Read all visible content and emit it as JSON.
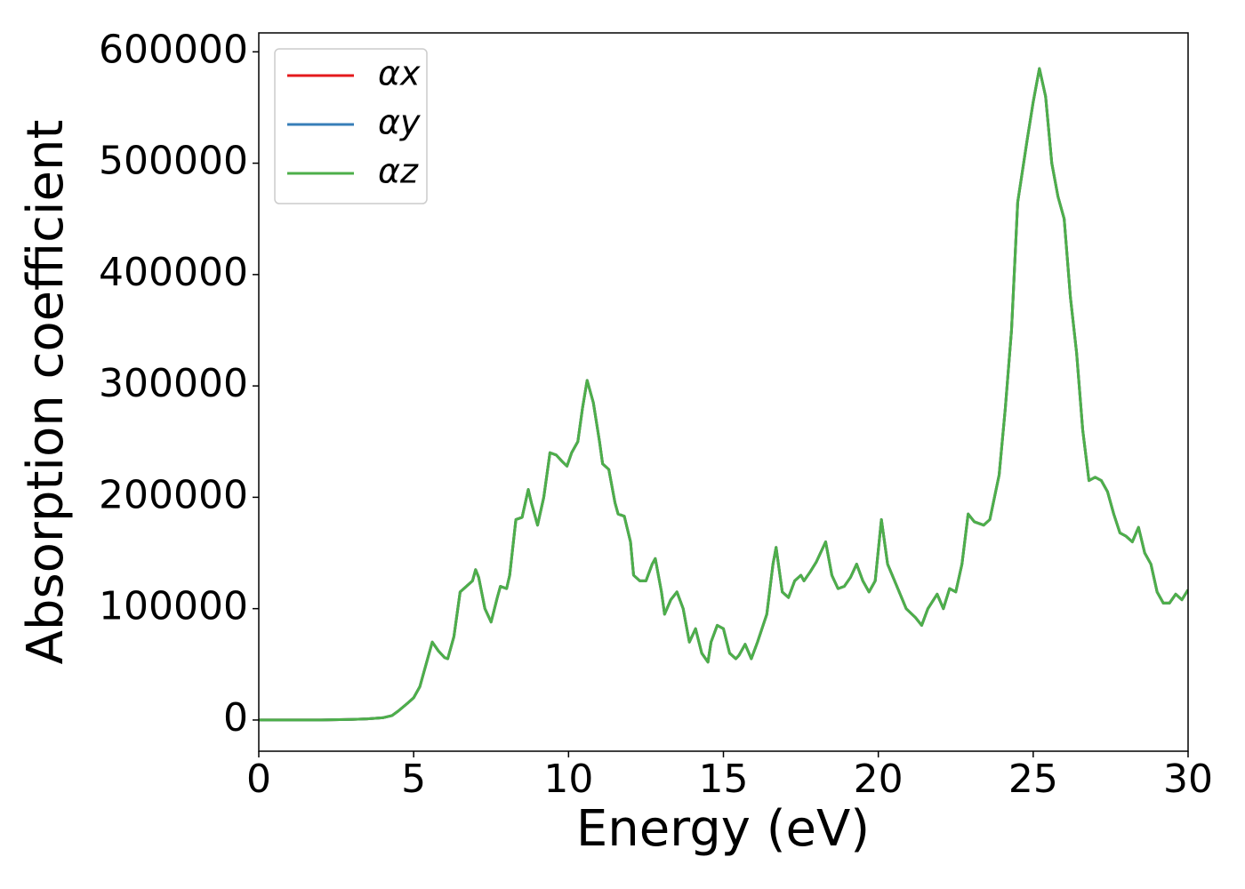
{
  "chart_data": {
    "type": "line",
    "xlabel": "Energy (eV)",
    "ylabel": "Absorption coefficient",
    "x": [
      0,
      1,
      2,
      3,
      3.5,
      4,
      4.3,
      4.5,
      4.8,
      5,
      5.2,
      5.4,
      5.6,
      5.8,
      6,
      6.1,
      6.3,
      6.5,
      6.7,
      6.9,
      7,
      7.1,
      7.3,
      7.5,
      7.7,
      7.8,
      8,
      8.1,
      8.3,
      8.5,
      8.7,
      8.8,
      9,
      9.2,
      9.4,
      9.6,
      9.8,
      9.95,
      10.1,
      10.3,
      10.45,
      10.6,
      10.8,
      11,
      11.1,
      11.3,
      11.5,
      11.6,
      11.8,
      12,
      12.1,
      12.3,
      12.5,
      12.7,
      12.8,
      13,
      13.1,
      13.3,
      13.5,
      13.7,
      13.9,
      14.1,
      14.3,
      14.5,
      14.6,
      14.8,
      15,
      15.2,
      15.4,
      15.5,
      15.7,
      15.9,
      16.1,
      16.4,
      16.6,
      16.7,
      16.9,
      17.1,
      17.3,
      17.5,
      17.6,
      17.8,
      18,
      18.3,
      18.5,
      18.7,
      18.9,
      19.1,
      19.3,
      19.5,
      19.7,
      19.9,
      20.1,
      20.3,
      20.6,
      20.9,
      21.2,
      21.4,
      21.6,
      21.9,
      22.1,
      22.3,
      22.5,
      22.7,
      22.9,
      23.1,
      23.4,
      23.6,
      23.9,
      24.1,
      24.3,
      24.5,
      24.8,
      25,
      25.2,
      25.4,
      25.6,
      25.8,
      26,
      26.2,
      26.4,
      26.6,
      26.8,
      27,
      27.2,
      27.4,
      27.6,
      27.8,
      28,
      28.2,
      28.4,
      28.6,
      28.8,
      29,
      29.2,
      29.4,
      29.6,
      29.8,
      30
    ],
    "series": [
      {
        "name": "αx",
        "color": "#e41a1c",
        "values": [
          0,
          0,
          0,
          500,
          1000,
          2000,
          4000,
          8000,
          15000,
          20000,
          30000,
          50000,
          70000,
          62000,
          56000,
          55000,
          75000,
          115000,
          120000,
          125000,
          135000,
          128000,
          100000,
          88000,
          110000,
          120000,
          118000,
          130000,
          180000,
          182000,
          207000,
          195000,
          175000,
          200000,
          240000,
          238000,
          232000,
          228000,
          240000,
          250000,
          280000,
          305000,
          285000,
          250000,
          230000,
          225000,
          195000,
          185000,
          183000,
          160000,
          130000,
          125000,
          125000,
          140000,
          145000,
          115000,
          95000,
          108000,
          115000,
          100000,
          70000,
          82000,
          60000,
          52000,
          70000,
          85000,
          82000,
          60000,
          55000,
          58000,
          68000,
          55000,
          70000,
          95000,
          140000,
          155000,
          115000,
          110000,
          125000,
          130000,
          125000,
          133000,
          142000,
          160000,
          130000,
          118000,
          120000,
          128000,
          140000,
          125000,
          115000,
          125000,
          180000,
          140000,
          120000,
          100000,
          92000,
          85000,
          100000,
          113000,
          100000,
          118000,
          115000,
          140000,
          185000,
          178000,
          175000,
          180000,
          220000,
          280000,
          350000,
          465000,
          520000,
          555000,
          585000,
          560000,
          500000,
          470000,
          450000,
          380000,
          330000,
          260000,
          215000,
          218000,
          215000,
          205000,
          185000,
          168000,
          165000,
          160000,
          173000,
          150000,
          140000,
          115000,
          105000,
          105000,
          113000,
          108000,
          117000
        ]
      },
      {
        "name": "αy",
        "color": "#377eb8",
        "values": [
          0,
          0,
          0,
          500,
          1000,
          2000,
          4000,
          8000,
          15000,
          20000,
          30000,
          50000,
          70000,
          62000,
          56000,
          55000,
          75000,
          115000,
          120000,
          125000,
          135000,
          128000,
          100000,
          88000,
          110000,
          120000,
          118000,
          130000,
          180000,
          182000,
          207000,
          195000,
          175000,
          200000,
          240000,
          238000,
          232000,
          228000,
          240000,
          250000,
          280000,
          305000,
          285000,
          250000,
          230000,
          225000,
          195000,
          185000,
          183000,
          160000,
          130000,
          125000,
          125000,
          140000,
          145000,
          115000,
          95000,
          108000,
          115000,
          100000,
          70000,
          82000,
          60000,
          52000,
          70000,
          85000,
          82000,
          60000,
          55000,
          58000,
          68000,
          55000,
          70000,
          95000,
          140000,
          155000,
          115000,
          110000,
          125000,
          130000,
          125000,
          133000,
          142000,
          160000,
          130000,
          118000,
          120000,
          128000,
          140000,
          125000,
          115000,
          125000,
          180000,
          140000,
          120000,
          100000,
          92000,
          85000,
          100000,
          113000,
          100000,
          118000,
          115000,
          140000,
          185000,
          178000,
          175000,
          180000,
          220000,
          280000,
          350000,
          465000,
          520000,
          555000,
          585000,
          560000,
          500000,
          470000,
          450000,
          380000,
          330000,
          260000,
          215000,
          218000,
          215000,
          205000,
          185000,
          168000,
          165000,
          160000,
          173000,
          150000,
          140000,
          115000,
          105000,
          105000,
          113000,
          108000,
          117000
        ]
      },
      {
        "name": "αz",
        "color": "#4daf4a",
        "values": [
          0,
          0,
          0,
          500,
          1000,
          2000,
          4000,
          8000,
          15000,
          20000,
          30000,
          50000,
          70000,
          62000,
          56000,
          55000,
          75000,
          115000,
          120000,
          125000,
          135000,
          128000,
          100000,
          88000,
          110000,
          120000,
          118000,
          130000,
          180000,
          182000,
          207000,
          195000,
          175000,
          200000,
          240000,
          238000,
          232000,
          228000,
          240000,
          250000,
          280000,
          305000,
          285000,
          250000,
          230000,
          225000,
          195000,
          185000,
          183000,
          160000,
          130000,
          125000,
          125000,
          140000,
          145000,
          115000,
          95000,
          108000,
          115000,
          100000,
          70000,
          82000,
          60000,
          52000,
          70000,
          85000,
          82000,
          60000,
          55000,
          58000,
          68000,
          55000,
          70000,
          95000,
          140000,
          155000,
          115000,
          110000,
          125000,
          130000,
          125000,
          133000,
          142000,
          160000,
          130000,
          118000,
          120000,
          128000,
          140000,
          125000,
          115000,
          125000,
          180000,
          140000,
          120000,
          100000,
          92000,
          85000,
          100000,
          113000,
          100000,
          118000,
          115000,
          140000,
          185000,
          178000,
          175000,
          180000,
          220000,
          280000,
          350000,
          465000,
          520000,
          555000,
          585000,
          560000,
          500000,
          470000,
          450000,
          380000,
          330000,
          260000,
          215000,
          218000,
          215000,
          205000,
          185000,
          168000,
          165000,
          160000,
          173000,
          150000,
          140000,
          115000,
          105000,
          105000,
          113000,
          108000,
          117000
        ]
      }
    ],
    "xlim": [
      0,
      30
    ],
    "xticks": [
      0,
      5,
      10,
      15,
      20,
      25,
      30
    ],
    "ylim": [
      -28000,
      617000
    ],
    "yticks": [
      0,
      100000,
      200000,
      300000,
      400000,
      500000,
      600000
    ],
    "legend": "upper left",
    "grid": false
  }
}
